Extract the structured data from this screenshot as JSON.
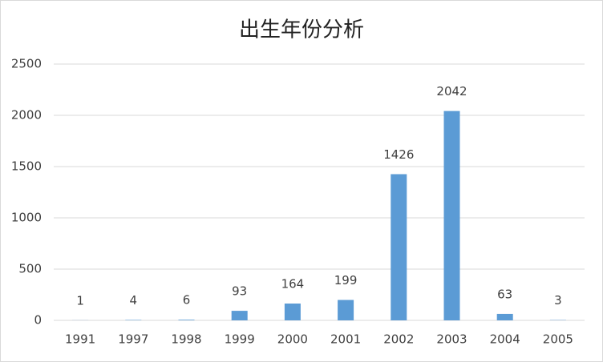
{
  "chart_data": {
    "type": "bar",
    "title": "出生年份分析",
    "categories": [
      "1991",
      "1997",
      "1998",
      "1999",
      "2000",
      "2001",
      "2002",
      "2003",
      "2004",
      "2005"
    ],
    "values": [
      1,
      4,
      6,
      93,
      164,
      199,
      1426,
      2042,
      63,
      3
    ],
    "color": "#5b9bd5",
    "ylim": [
      0,
      2500
    ],
    "yticks": [
      0,
      500,
      1000,
      1500,
      2000,
      2500
    ],
    "grid": true,
    "data_labels": true
  }
}
